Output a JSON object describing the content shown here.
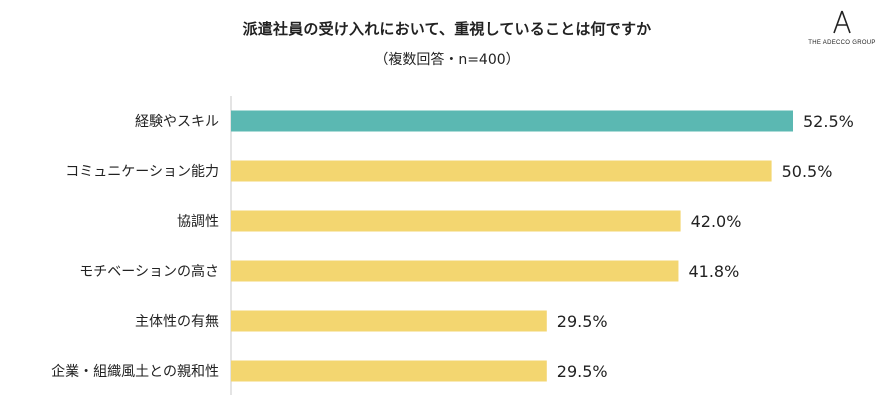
{
  "title": "派遣社員の受け入れにおいて、重視していることは何ですか",
  "subtitle": "（複数回答・n=400）",
  "logo": {
    "mark": "A",
    "text": "THE ADECCO GROUP"
  },
  "colors": {
    "highlight": "#5bb8b2",
    "bar": "#f3d670",
    "axis": "#c8c8c8",
    "text": "#222222"
  },
  "chart_data": {
    "type": "bar",
    "orientation": "horizontal",
    "categories": [
      "経験やスキル",
      "コミュニケーション能力",
      "協調性",
      "モチベーションの高さ",
      "主体性の有無",
      "企業・組織風土との親和性"
    ],
    "values": [
      52.5,
      50.5,
      42.0,
      41.8,
      29.5,
      29.5
    ],
    "value_labels": [
      "52.5%",
      "50.5%",
      "42.0%",
      "41.8%",
      "29.5%",
      "29.5%"
    ],
    "unit": "%",
    "xlim": [
      0,
      60
    ],
    "grid": false,
    "legend": "none",
    "highlighted_index": 0
  }
}
